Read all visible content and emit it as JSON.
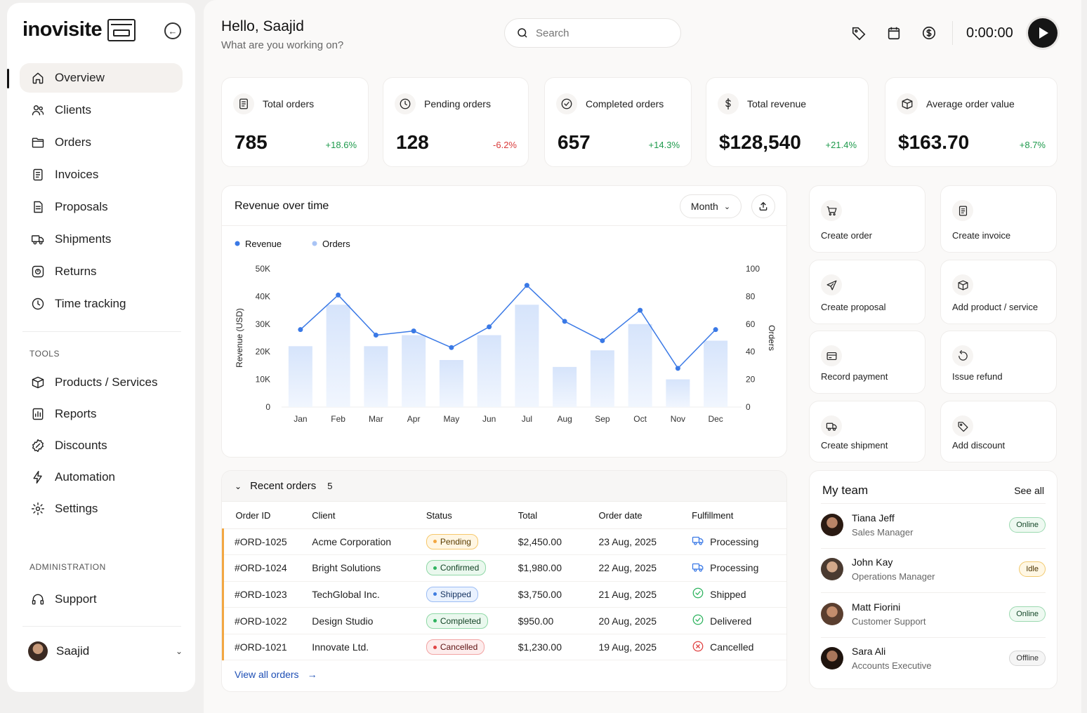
{
  "brand": {
    "name": "inovisite"
  },
  "nav": {
    "items": [
      {
        "label": "Overview",
        "icon": "home-icon",
        "active": true
      },
      {
        "label": "Clients",
        "icon": "users-icon"
      },
      {
        "label": "Orders",
        "icon": "folder-icon"
      },
      {
        "label": "Invoices",
        "icon": "invoice-icon"
      },
      {
        "label": "Proposals",
        "icon": "document-icon"
      },
      {
        "label": "Shipments",
        "icon": "truck-icon"
      },
      {
        "label": "Returns",
        "icon": "return-icon"
      },
      {
        "label": "Time tracking",
        "icon": "clock-icon"
      }
    ],
    "tools_label": "TOOLS",
    "tools": [
      {
        "label": "Products / Services",
        "icon": "box-icon"
      },
      {
        "label": "Reports",
        "icon": "chart-icon"
      },
      {
        "label": "Discounts",
        "icon": "discount-icon"
      },
      {
        "label": "Automation",
        "icon": "bolt-icon"
      },
      {
        "label": "Settings",
        "icon": "gear-icon"
      }
    ],
    "admin_label": "ADMINISTRATION",
    "admin": [
      {
        "label": "Support",
        "icon": "headset-icon"
      }
    ],
    "user": {
      "name": "Saajid"
    }
  },
  "header": {
    "greeting": "Hello, Saajid",
    "subtitle": "What are you working on?",
    "search_placeholder": "Search",
    "timer": "0:00:00"
  },
  "stats": [
    {
      "label": "Total orders",
      "value": "785",
      "change": "+18.6%",
      "trend": "pos"
    },
    {
      "label": "Pending orders",
      "value": "128",
      "change": "-6.2%",
      "trend": "neg"
    },
    {
      "label": "Completed orders",
      "value": "657",
      "change": "+14.3%",
      "trend": "pos"
    },
    {
      "label": "Total revenue",
      "value": "$128,540",
      "change": "+21.4%",
      "trend": "pos"
    },
    {
      "label": "Average order value",
      "value": "$163.70",
      "change": "+8.7%",
      "trend": "pos"
    }
  ],
  "revenue_card": {
    "title": "Revenue over time",
    "period": "Month"
  },
  "chart_data": {
    "type": "bar",
    "categories": [
      "Jan",
      "Feb",
      "Mar",
      "Apr",
      "May",
      "Jun",
      "Jul",
      "Aug",
      "Sep",
      "Oct",
      "Nov",
      "Dec"
    ],
    "series": [
      {
        "name": "Revenue",
        "type": "bar",
        "axis": "left",
        "values": [
          22000,
          37000,
          22000,
          26000,
          17000,
          26000,
          37000,
          14500,
          20500,
          30000,
          10000,
          24000
        ]
      },
      {
        "name": "Orders",
        "type": "line",
        "axis": "right",
        "values": [
          56,
          81,
          52,
          55,
          43,
          58,
          88,
          62,
          48,
          70,
          28,
          56
        ]
      }
    ],
    "ylabel": "Revenue (USD)",
    "y2label": "Orders",
    "yticks": [
      "50K",
      "40K",
      "30K",
      "20K",
      "10K",
      "0"
    ],
    "y2ticks": [
      "100",
      "80",
      "60",
      "40",
      "20",
      "0"
    ],
    "ylim": [
      0,
      50000
    ],
    "y2lim": [
      0,
      100
    ],
    "legend": "top-left",
    "colors": {
      "bar": "#d6e4fb",
      "line": "#3a79e6",
      "legend_orders": "#a9c4f5"
    }
  },
  "recent_orders": {
    "title": "Recent orders",
    "count": "5",
    "columns": [
      "Order ID",
      "Client",
      "Status",
      "Total",
      "Order date",
      "Fulfillment"
    ],
    "rows": [
      {
        "id": "#ORD-1025",
        "client": "Acme Corporation",
        "status": "Pending",
        "status_class": "b-pending",
        "total": "$2,450.00",
        "date": "23 Aug, 2025",
        "fulfillment": "Processing",
        "ful_icon": "truck-icon"
      },
      {
        "id": "#ORD-1024",
        "client": "Bright Solutions",
        "status": "Confirmed",
        "status_class": "b-confirmed",
        "total": "$1,980.00",
        "date": "22 Aug, 2025",
        "fulfillment": "Processing",
        "ful_icon": "truck-icon"
      },
      {
        "id": "#ORD-1023",
        "client": "TechGlobal Inc.",
        "status": "Shipped",
        "status_class": "b-shipped",
        "total": "$3,750.00",
        "date": "21 Aug, 2025",
        "fulfillment": "Shipped",
        "ful_icon": "check-circle-icon"
      },
      {
        "id": "#ORD-1022",
        "client": "Design Studio",
        "status": "Completed",
        "status_class": "b-completed",
        "total": "$950.00",
        "date": "20 Aug, 2025",
        "fulfillment": "Delivered",
        "ful_icon": "check-circle-icon"
      },
      {
        "id": "#ORD-1021",
        "client": "Innovate Ltd.",
        "status": "Cancelled",
        "status_class": "b-cancelled",
        "total": "$1,230.00",
        "date": "19 Aug, 2025",
        "fulfillment": "Cancelled",
        "ful_icon": "x-circle-icon"
      }
    ],
    "view_all": "View all orders"
  },
  "actions": [
    {
      "label": "Create order",
      "icon": "cart-icon"
    },
    {
      "label": "Create invoice",
      "icon": "invoice-icon"
    },
    {
      "label": "Create proposal",
      "icon": "send-icon"
    },
    {
      "label": "Add product / service",
      "icon": "box-icon"
    },
    {
      "label": "Record payment",
      "icon": "card-icon"
    },
    {
      "label": "Issue refund",
      "icon": "refund-icon"
    },
    {
      "label": "Create shipment",
      "icon": "truck-icon"
    },
    {
      "label": "Add discount",
      "icon": "tag-icon"
    }
  ],
  "team": {
    "title": "My team",
    "see_all": "See all",
    "members": [
      {
        "name": "Tiana Jeff",
        "role": "Sales Manager",
        "status": "Online",
        "status_class": "s-online"
      },
      {
        "name": "John Kay",
        "role": "Operations Manager",
        "status": "Idle",
        "status_class": "s-idle"
      },
      {
        "name": "Matt Fiorini",
        "role": "Customer Support",
        "status": "Online",
        "status_class": "s-online"
      },
      {
        "name": "Sara Ali",
        "role": "Accounts Executive",
        "status": "Offline",
        "status_class": "s-offline"
      }
    ]
  }
}
